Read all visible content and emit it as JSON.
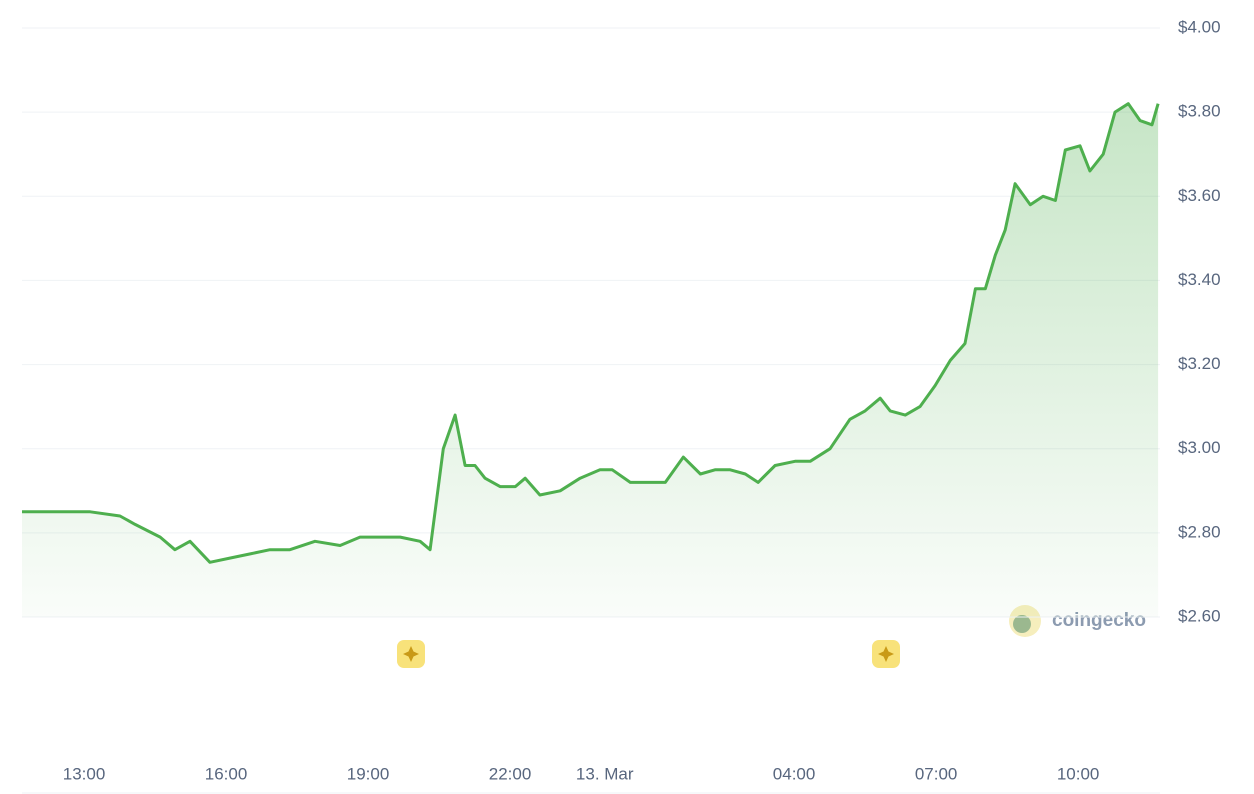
{
  "chart_data": {
    "type": "line",
    "x": [
      11.69,
      12.49,
      13.13,
      13.76,
      14.08,
      14.61,
      14.92,
      15.24,
      15.66,
      16.08,
      16.51,
      16.93,
      17.35,
      17.88,
      18.41,
      18.83,
      19.25,
      19.68,
      20.1,
      20.31,
      20.59,
      20.84,
      21.05,
      21.26,
      21.47,
      21.79,
      22.11,
      22.32,
      22.63,
      23.06,
      23.48,
      23.9,
      24.16,
      24.54,
      24.96,
      25.28,
      25.66,
      26.02,
      26.33,
      26.65,
      26.97,
      27.24,
      27.6,
      28.02,
      28.34,
      28.76,
      29.18,
      29.5,
      29.82,
      30.03,
      30.35,
      30.66,
      30.98,
      31.3,
      31.61,
      31.83,
      32.04,
      32.25,
      32.46,
      32.67,
      32.99,
      33.26,
      33.52,
      33.73,
      34.04,
      34.25,
      34.53,
      34.78,
      35.06,
      35.31,
      35.56,
      35.69
    ],
    "series": [
      {
        "color": "#4eaf4e",
        "values": [
          2.85,
          2.85,
          2.85,
          2.84,
          2.82,
          2.79,
          2.76,
          2.78,
          2.73,
          2.74,
          2.75,
          2.76,
          2.76,
          2.78,
          2.77,
          2.79,
          2.79,
          2.79,
          2.78,
          2.76,
          3.0,
          3.08,
          2.96,
          2.96,
          2.93,
          2.91,
          2.91,
          2.93,
          2.89,
          2.9,
          2.93,
          2.95,
          2.95,
          2.92,
          2.92,
          2.92,
          2.98,
          2.94,
          2.95,
          2.95,
          2.94,
          2.92,
          2.96,
          2.97,
          2.97,
          3.0,
          3.07,
          3.09,
          3.12,
          3.09,
          3.08,
          3.1,
          3.15,
          3.21,
          3.25,
          3.38,
          3.38,
          3.46,
          3.52,
          3.63,
          3.58,
          3.6,
          3.59,
          3.71,
          3.72,
          3.66,
          3.7,
          3.8,
          3.82,
          3.78,
          3.77,
          3.82
        ]
      }
    ],
    "xlim": [
      11.69,
      35.73
    ],
    "xticks": [
      {
        "value": 13,
        "label": "13:00"
      },
      {
        "value": 16,
        "label": "16:00"
      },
      {
        "value": 19,
        "label": "19:00"
      },
      {
        "value": 22,
        "label": "22:00"
      },
      {
        "value": 24,
        "label": "13. Mar"
      },
      {
        "value": 28,
        "label": "04:00"
      },
      {
        "value": 31,
        "label": "07:00"
      },
      {
        "value": 34,
        "label": "10:00"
      }
    ],
    "ylim": [
      2.6,
      4.0
    ],
    "yticks": [
      {
        "value": 2.6,
        "label": "$2.60"
      },
      {
        "value": 2.8,
        "label": "$2.80"
      },
      {
        "value": 3.0,
        "label": "$3.00"
      },
      {
        "value": 3.2,
        "label": "$3.20"
      },
      {
        "value": 3.4,
        "label": "$3.40"
      },
      {
        "value": 3.6,
        "label": "$3.60"
      },
      {
        "value": 3.8,
        "label": "$3.80"
      },
      {
        "value": 4.0,
        "label": "$4.00"
      }
    ],
    "grid": true,
    "watermark": "coingecko"
  }
}
